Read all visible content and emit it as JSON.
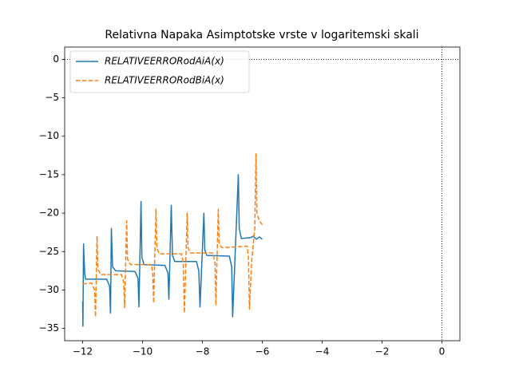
{
  "chart_data": {
    "type": "line",
    "title": "Relativna Napaka Asimptotske vrste v logaritemski skali",
    "xlim": [
      -12.6,
      0.6
    ],
    "ylim": [
      -36.6,
      1.6
    ],
    "xticks": [
      {
        "value": -12,
        "label": "−12"
      },
      {
        "value": -10,
        "label": "−10"
      },
      {
        "value": -8,
        "label": "−8"
      },
      {
        "value": -6,
        "label": "−6"
      },
      {
        "value": -4,
        "label": "−4"
      },
      {
        "value": -2,
        "label": "−2"
      },
      0
    ],
    "yticks": [
      0,
      {
        "value": -5,
        "label": "−5"
      },
      {
        "value": -10,
        "label": "−10"
      },
      {
        "value": -15,
        "label": "−15"
      },
      {
        "value": -20,
        "label": "−20"
      },
      {
        "value": -25,
        "label": "−25"
      },
      {
        "value": -30,
        "label": "−30"
      },
      {
        "value": -35,
        "label": "−35"
      }
    ],
    "axhline": 0,
    "axvline": 0,
    "grid": false,
    "legend": "upper left",
    "series": [
      {
        "name": "RELATIVEERRORodAiA(x)",
        "color": "#1f77b4",
        "dash": "solid",
        "x": [
          -12.0,
          -11.99,
          -11.97,
          -11.93,
          -11.9,
          -11.2,
          -11.1,
          -11.07,
          -11.04,
          -11.0,
          -10.9,
          -10.25,
          -10.15,
          -10.12,
          -10.05,
          -10.02,
          -9.95,
          -9.25,
          -9.15,
          -9.12,
          -9.04,
          -9.0,
          -8.92,
          -8.2,
          -8.12,
          -8.08,
          -7.95,
          -7.92,
          -7.85,
          -7.1,
          -7.02,
          -6.99,
          -6.8,
          -6.77,
          -6.7,
          -6.4,
          -6.3,
          -6.2,
          -6.1,
          -6.0
        ],
        "values": [
          -31.5,
          -34.7,
          -24,
          -28,
          -28.6,
          -28.6,
          -29.5,
          -33,
          -22,
          -27,
          -27.5,
          -27.6,
          -28.5,
          -32.2,
          -18.5,
          -25.8,
          -26.7,
          -26.8,
          -27.8,
          -31.2,
          -19,
          -25.5,
          -26.3,
          -26.3,
          -27.5,
          -32.2,
          -20,
          -24.8,
          -25.5,
          -25.6,
          -27,
          -33.5,
          -15,
          -22,
          -23.3,
          -23.2,
          -23,
          -23.4,
          -23.1,
          -23.4
        ]
      },
      {
        "name": "RELATIVEERRORodBiA(x)",
        "color": "#ff7f0e",
        "dash": "dashed",
        "x": [
          -12.0,
          -11.7,
          -11.6,
          -11.57,
          -11.52,
          -11.49,
          -11.4,
          -10.7,
          -10.63,
          -10.6,
          -10.53,
          -10.5,
          -10.4,
          -9.7,
          -9.66,
          -9.63,
          -9.55,
          -9.52,
          -9.45,
          -8.7,
          -8.64,
          -8.6,
          -8.51,
          -8.48,
          -8.4,
          -7.65,
          -7.58,
          -7.55,
          -7.47,
          -7.44,
          -7.35,
          -6.5,
          -6.46,
          -6.43,
          -6.35,
          -6.25,
          -6.21,
          -6.18,
          -6.1,
          -6.0
        ],
        "values": [
          -29.2,
          -29.1,
          -30,
          -33.5,
          -23,
          -27.3,
          -28,
          -28,
          -29,
          -32.3,
          -21,
          -26,
          -26.7,
          -26.7,
          -27.8,
          -31.7,
          -19.5,
          -24.5,
          -25.3,
          -25.3,
          -26.5,
          -33,
          -20,
          -24.5,
          -25.2,
          -25.2,
          -26.5,
          -32,
          -19.5,
          -24,
          -24.5,
          -24.3,
          -26,
          -32.5,
          -26,
          -22,
          -12.3,
          -20,
          -21,
          -21.5
        ]
      }
    ]
  }
}
